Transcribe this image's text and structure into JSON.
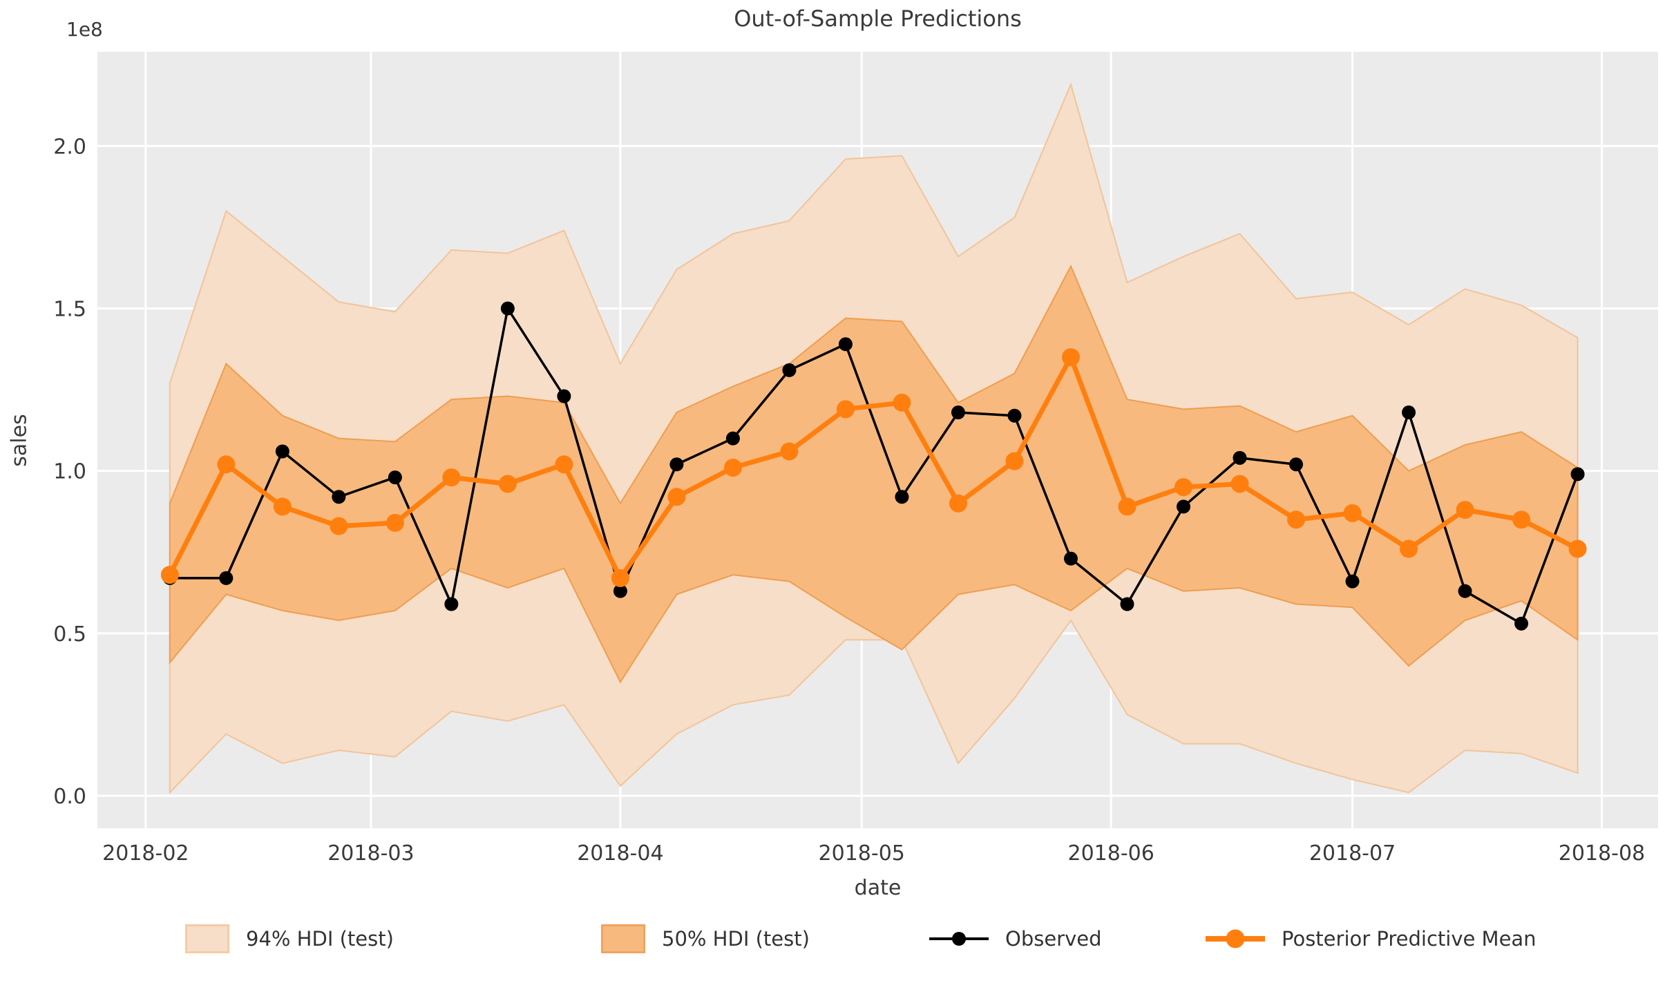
{
  "title": "Out-of-Sample Predictions",
  "legend": {
    "items": [
      {
        "label": "94% HDI (test)",
        "swatch": "band-94"
      },
      {
        "label": "50% HDI (test)",
        "swatch": "band-50"
      },
      {
        "label": "Observed",
        "swatch": "observed-line"
      },
      {
        "label": "Posterior Predictive Mean",
        "swatch": "posterior-mean-line"
      }
    ]
  },
  "colors": {
    "figure_background": "#ffffff",
    "plot_background": "#ebebeb",
    "gridline": "#ffffff",
    "observed": "#000000",
    "posterior_mean": "#ff7f0e",
    "band_94_fill": "#f6dec8",
    "band_94_edge": "#f2c49a",
    "band_50_fill": "#f7b97e",
    "band_50_edge": "#ef9d50",
    "text": "#3a3a3a"
  },
  "chart_data": {
    "type": "line",
    "title": "Out-of-Sample Predictions",
    "xlabel": "date",
    "ylabel": "sales",
    "y_offset_label": "1e8",
    "y_units": "1e8",
    "grid": true,
    "legend_position": "bottom",
    "ylim": [
      -0.1,
      2.29
    ],
    "xlim": [
      "2018-01-26",
      "2018-08-08"
    ],
    "yticks": {
      "values": [
        0.0,
        0.5,
        1.0,
        1.5,
        2.0
      ],
      "labels": [
        "0.0",
        "0.5",
        "1.0",
        "1.5",
        "2.0"
      ]
    },
    "xticks": [
      {
        "label": "2018-02",
        "date": "2018-02-01"
      },
      {
        "label": "2018-03",
        "date": "2018-03-01"
      },
      {
        "label": "2018-04",
        "date": "2018-04-01"
      },
      {
        "label": "2018-05",
        "date": "2018-05-01"
      },
      {
        "label": "2018-06",
        "date": "2018-06-01"
      },
      {
        "label": "2018-07",
        "date": "2018-07-01"
      },
      {
        "label": "2018-08",
        "date": "2018-08-01"
      }
    ],
    "x": [
      "2018-02-04",
      "2018-02-11",
      "2018-02-18",
      "2018-02-25",
      "2018-03-04",
      "2018-03-11",
      "2018-03-18",
      "2018-03-25",
      "2018-04-01",
      "2018-04-08",
      "2018-04-15",
      "2018-04-22",
      "2018-04-29",
      "2018-05-06",
      "2018-05-13",
      "2018-05-20",
      "2018-05-27",
      "2018-06-03",
      "2018-06-10",
      "2018-06-17",
      "2018-06-24",
      "2018-07-01",
      "2018-07-08",
      "2018-07-15",
      "2018-07-22",
      "2018-07-29"
    ],
    "series": [
      {
        "name": "Observed",
        "color": "#000000",
        "values": [
          0.67,
          0.67,
          1.06,
          0.92,
          0.98,
          0.59,
          1.5,
          1.23,
          0.63,
          1.02,
          1.1,
          1.31,
          1.39,
          0.92,
          1.18,
          1.17,
          0.73,
          0.59,
          0.89,
          1.04,
          1.02,
          0.66,
          1.18,
          0.63,
          0.53,
          0.99
        ]
      },
      {
        "name": "Posterior Predictive Mean",
        "color": "#ff7f0e",
        "values": [
          0.68,
          1.02,
          0.89,
          0.83,
          0.84,
          0.98,
          0.96,
          1.02,
          0.67,
          0.92,
          1.01,
          1.06,
          1.19,
          1.21,
          0.9,
          1.03,
          1.35,
          0.89,
          0.95,
          0.96,
          0.85,
          0.87,
          0.76,
          0.88,
          0.85,
          0.76
        ]
      }
    ],
    "bands": [
      {
        "name": "94% HDI (test)",
        "fill": "#f6dec8",
        "edge": "#f2c49a",
        "upper": [
          1.27,
          1.8,
          1.66,
          1.52,
          1.49,
          1.68,
          1.67,
          1.74,
          1.33,
          1.62,
          1.73,
          1.77,
          1.96,
          1.97,
          1.66,
          1.78,
          2.19,
          1.58,
          1.66,
          1.73,
          1.53,
          1.55,
          1.45,
          1.56,
          1.51,
          1.41
        ],
        "lower": [
          0.01,
          0.19,
          0.1,
          0.14,
          0.12,
          0.26,
          0.23,
          0.28,
          0.03,
          0.19,
          0.28,
          0.31,
          0.48,
          0.48,
          0.1,
          0.3,
          0.54,
          0.25,
          0.16,
          0.16,
          0.1,
          0.05,
          0.01,
          0.14,
          0.13,
          0.07
        ]
      },
      {
        "name": "50% HDI (test)",
        "fill": "#f7b97e",
        "edge": "#ef9d50",
        "upper": [
          0.9,
          1.33,
          1.17,
          1.1,
          1.09,
          1.22,
          1.23,
          1.21,
          0.9,
          1.18,
          1.26,
          1.33,
          1.47,
          1.46,
          1.21,
          1.3,
          1.63,
          1.22,
          1.19,
          1.2,
          1.12,
          1.17,
          1.0,
          1.08,
          1.12,
          1.01
        ],
        "lower": [
          0.41,
          0.62,
          0.57,
          0.54,
          0.57,
          0.7,
          0.64,
          0.7,
          0.35,
          0.62,
          0.68,
          0.66,
          0.55,
          0.45,
          0.62,
          0.65,
          0.57,
          0.7,
          0.63,
          0.64,
          0.59,
          0.58,
          0.4,
          0.54,
          0.6,
          0.48
        ]
      }
    ]
  }
}
